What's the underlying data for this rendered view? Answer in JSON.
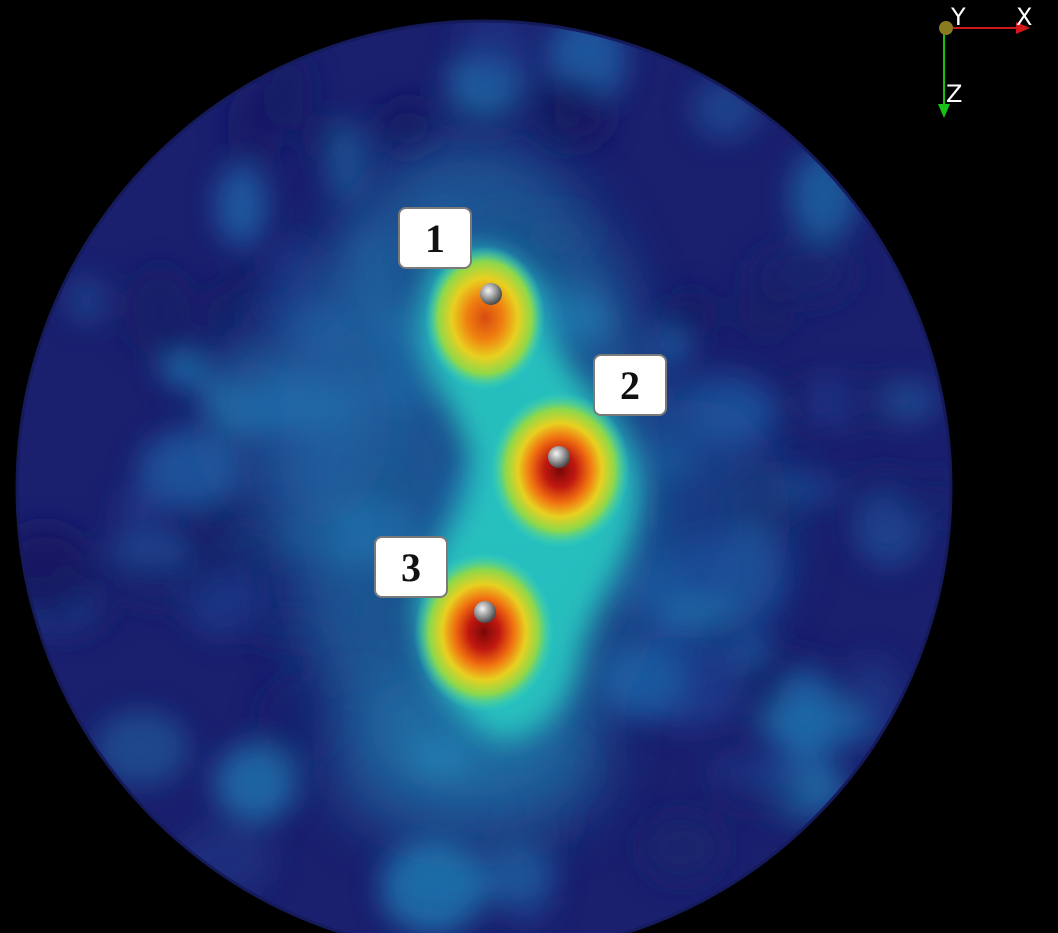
{
  "markers": [
    {
      "label": "1"
    },
    {
      "label": "2"
    },
    {
      "label": "3"
    }
  ],
  "axes": {
    "x_label": "X",
    "y_label": "Y",
    "z_label": "Z",
    "x_color": "#d01818",
    "z_color": "#18c018",
    "y_color": "#8a7a20"
  },
  "colormap": [
    "#1a1f6e",
    "#1f4fa0",
    "#1fb0b8",
    "#38d8c0",
    "#8ed84a",
    "#e8d020",
    "#f08010",
    "#d02010",
    "#7a0808"
  ]
}
